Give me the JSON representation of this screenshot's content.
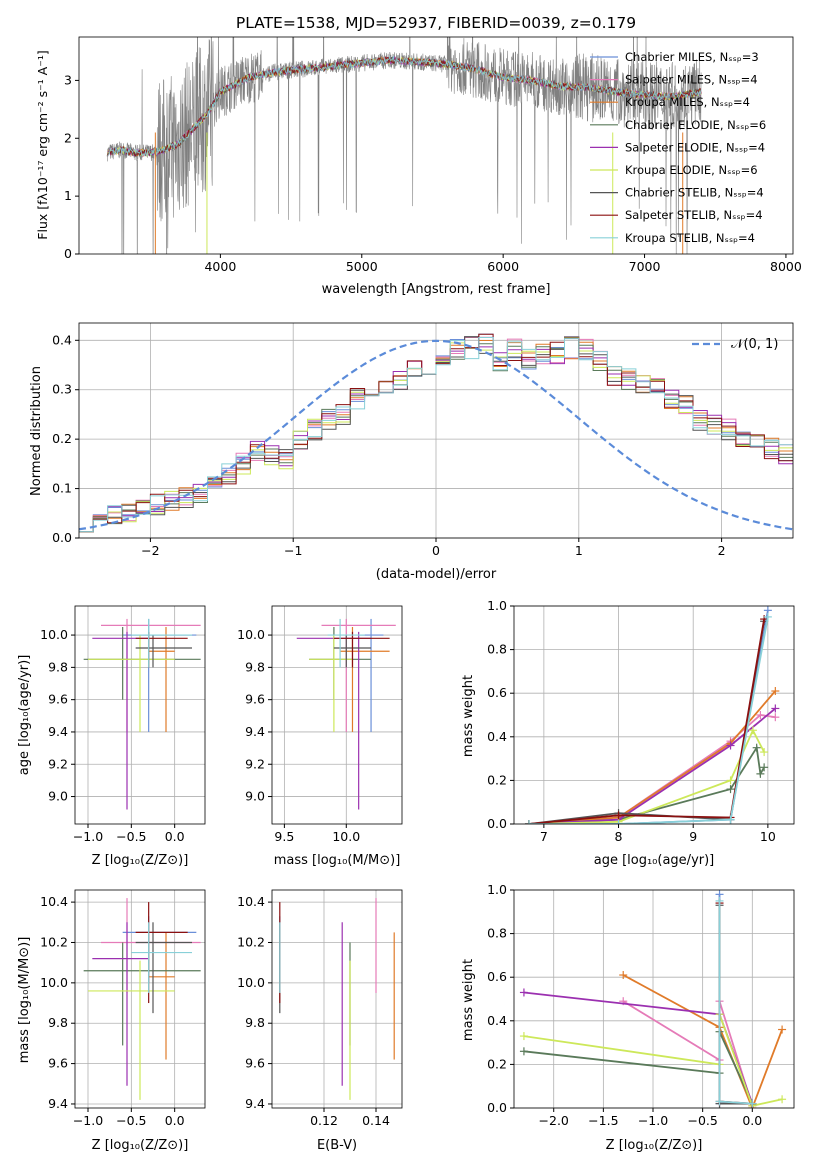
{
  "figure": {
    "title": "PLATE=1538, MJD=52937, FIBERID=0039, z=0.179"
  },
  "colors": {
    "chabrier_miles": "#6a8fd8",
    "salpeter_miles": "#e57bb8",
    "kroupa_miles": "#e07b2a",
    "chabrier_elodie": "#5a7a5a",
    "salpeter_elodie": "#9b30b0",
    "kroupa_elodie": "#cde85a",
    "chabrier_stelib": "#555555",
    "salpeter_stelib": "#8b1010",
    "kroupa_stelib": "#88d0d8",
    "data": "#808080"
  },
  "chart_data": [
    {
      "id": "spectrum",
      "type": "line",
      "xlabel": "wavelength [Angstrom, rest frame]",
      "ylabel": "Flux [fλ10⁻¹⁷ erg cm⁻² s⁻¹ A⁻¹]",
      "xlim": [
        3000,
        8050
      ],
      "ylim": [
        0,
        3.75
      ],
      "xticks": [
        "4000",
        "5000",
        "6000",
        "7000",
        "8000"
      ],
      "yticks": [
        "0",
        "1",
        "2",
        "3"
      ],
      "legend_position": "upper-right",
      "legend": [
        "Chabrier MILES, Nₛₛₚ=3",
        "Salpeter MILES, Nₛₛₚ=4",
        "Kroupa MILES, Nₛₛₚ=4",
        "Chabrier ELODIE, Nₛₛₚ=6",
        "Salpeter ELODIE, Nₛₛₚ=4",
        "Kroupa ELODIE, Nₛₛₚ=6",
        "Chabrier STELIB, Nₛₛₚ=4",
        "Salpeter STELIB, Nₛₛₚ=4",
        "Kroupa STELIB, Nₛₛₚ=4"
      ],
      "continuum": [
        [
          3200,
          1.75
        ],
        [
          3300,
          1.8
        ],
        [
          3400,
          1.75
        ],
        [
          3500,
          1.75
        ],
        [
          3600,
          1.8
        ],
        [
          3700,
          1.9
        ],
        [
          3800,
          2.15
        ],
        [
          3900,
          2.4
        ],
        [
          4000,
          2.8
        ],
        [
          4200,
          3.05
        ],
        [
          4400,
          3.15
        ],
        [
          4600,
          3.2
        ],
        [
          4800,
          3.25
        ],
        [
          5000,
          3.3
        ],
        [
          5200,
          3.35
        ],
        [
          5400,
          3.32
        ],
        [
          5600,
          3.28
        ],
        [
          5800,
          3.2
        ],
        [
          6000,
          3.05
        ],
        [
          6200,
          3.0
        ],
        [
          6400,
          2.9
        ],
        [
          6600,
          2.88
        ],
        [
          6800,
          2.8
        ],
        [
          7000,
          2.75
        ],
        [
          7200,
          2.72
        ],
        [
          7400,
          2.8
        ]
      ]
    },
    {
      "id": "residuals",
      "type": "line",
      "xlabel": "(data-model)/error",
      "ylabel": "Normed distribution",
      "xlim": [
        -2.5,
        2.5
      ],
      "ylim": [
        0,
        0.435
      ],
      "xticks": [
        "−2",
        "−1",
        "0",
        "1",
        "2"
      ],
      "yticks": [
        "0.0",
        "0.1",
        "0.2",
        "0.3",
        "0.4"
      ],
      "legend_position": "upper-right",
      "legend": [
        "𝒩(0, 1)"
      ],
      "bin_width": 0.1,
      "histogram_base": [
        0.035,
        0.035,
        0.048,
        0.055,
        0.06,
        0.068,
        0.075,
        0.08,
        0.09,
        0.11,
        0.13,
        0.15,
        0.175,
        0.17,
        0.16,
        0.2,
        0.22,
        0.24,
        0.25,
        0.28,
        0.28,
        0.3,
        0.32,
        0.34,
        0.35,
        0.37,
        0.38,
        0.385,
        0.39,
        0.36,
        0.38,
        0.36,
        0.37,
        0.375,
        0.385,
        0.38,
        0.36,
        0.33,
        0.32,
        0.31,
        0.3,
        0.28,
        0.27,
        0.24,
        0.23,
        0.22,
        0.2,
        0.19,
        0.18,
        0.17
      ]
    },
    {
      "id": "age_vs_z",
      "type": "scatter",
      "xlabel": "Z [log₁₀(Z/Z⊙)]",
      "ylabel": "age  [log₁₀(age/yr)]",
      "xlim": [
        -1.15,
        0.35
      ],
      "ylim": [
        8.83,
        10.18
      ],
      "xticks": [
        "−1.0",
        "−0.5",
        "0.0"
      ],
      "yticks": [
        "9.0",
        "9.2",
        "9.4",
        "9.6",
        "9.8",
        "10.0"
      ]
    },
    {
      "id": "age_vs_mass",
      "type": "scatter",
      "xlabel": "mass [log₁₀(M/M⊙)]",
      "xlim": [
        9.4,
        10.45
      ],
      "ylim": [
        8.83,
        10.18
      ],
      "xticks": [
        "9.5",
        "10.0"
      ],
      "yticks": [
        "9.0",
        "9.2",
        "9.4",
        "9.6",
        "9.8",
        "10.0"
      ]
    },
    {
      "id": "massweight_vs_age",
      "type": "line",
      "xlabel": "age  [log₁₀(age/yr)]",
      "ylabel": "mass weight",
      "xlim": [
        6.6,
        10.35
      ],
      "ylim": [
        0,
        1
      ],
      "xticks": [
        "7",
        "8",
        "9",
        "10"
      ],
      "yticks": [
        "0.0",
        "0.2",
        "0.4",
        "0.6",
        "0.8",
        "1.0"
      ],
      "series": [
        {
          "key": "chabrier_miles",
          "x": [
            6.8,
            8.0,
            9.5,
            10.0
          ],
          "y": [
            0.0,
            0.0,
            0.02,
            0.98
          ]
        },
        {
          "key": "salpeter_miles",
          "x": [
            6.8,
            8.0,
            9.5,
            9.9,
            10.1
          ],
          "y": [
            0.0,
            0.03,
            0.38,
            0.5,
            0.49
          ]
        },
        {
          "key": "kroupa_miles",
          "x": [
            6.8,
            8.0,
            9.5,
            10.1
          ],
          "y": [
            0.0,
            0.03,
            0.37,
            0.61
          ]
        },
        {
          "key": "chabrier_elodie",
          "x": [
            6.8,
            8.0,
            9.5,
            9.85,
            9.9,
            9.95
          ],
          "y": [
            0.0,
            0.02,
            0.16,
            0.35,
            0.23,
            0.26
          ]
        },
        {
          "key": "salpeter_elodie",
          "x": [
            6.8,
            8.0,
            9.5,
            10.1
          ],
          "y": [
            0.0,
            0.02,
            0.36,
            0.53
          ]
        },
        {
          "key": "kroupa_elodie",
          "x": [
            6.8,
            8.0,
            9.5,
            9.8,
            9.95
          ],
          "y": [
            0.0,
            0.01,
            0.2,
            0.43,
            0.33
          ]
        },
        {
          "key": "chabrier_stelib",
          "x": [
            6.8,
            8.0,
            9.5,
            9.95
          ],
          "y": [
            0.0,
            0.05,
            0.02,
            0.93
          ]
        },
        {
          "key": "salpeter_stelib",
          "x": [
            6.8,
            8.0,
            9.5,
            9.95
          ],
          "y": [
            0.0,
            0.04,
            0.03,
            0.94
          ]
        },
        {
          "key": "kroupa_stelib",
          "x": [
            6.8,
            8.0,
            9.5,
            10.0
          ],
          "y": [
            0.0,
            0.0,
            0.02,
            0.95
          ]
        }
      ]
    },
    {
      "id": "mass_vs_z",
      "type": "scatter",
      "xlabel": "Z [log₁₀(Z/Z⊙)]",
      "ylabel": "mass [log₁₀(M/M⊙)]",
      "xlim": [
        -1.15,
        0.35
      ],
      "ylim": [
        9.38,
        10.46
      ],
      "xticks": [
        "−1.0",
        "−0.5",
        "0.0"
      ],
      "yticks": [
        "9.4",
        "9.6",
        "9.8",
        "10.0",
        "10.2",
        "10.4"
      ]
    },
    {
      "id": "mass_vs_ebv",
      "type": "scatter",
      "xlabel": "E(B-V)",
      "xlim": [
        0.1,
        0.15
      ],
      "ylim": [
        9.38,
        10.46
      ],
      "xticks": [
        "0.12",
        "0.14"
      ],
      "yticks": [
        "9.4",
        "9.6",
        "9.8",
        "10.0",
        "10.2",
        "10.4"
      ]
    },
    {
      "id": "massweight_vs_z",
      "type": "line",
      "xlabel": "Z [log₁₀(Z/Z⊙)]",
      "ylabel": "mass weight",
      "xlim": [
        -2.4,
        0.42
      ],
      "ylim": [
        0,
        1
      ],
      "xticks": [
        "−2.0",
        "−1.5",
        "−1.0",
        "−0.5",
        "0.0"
      ],
      "yticks": [
        "0.0",
        "0.2",
        "0.4",
        "0.6",
        "0.8",
        "1.0"
      ],
      "series": [
        {
          "key": "chabrier_miles",
          "x": [
            -0.33,
            -0.33,
            0.0
          ],
          "y": [
            0.98,
            0.02,
            0.02
          ]
        },
        {
          "key": "salpeter_miles",
          "x": [
            -1.3,
            -0.33,
            -0.33,
            0.0
          ],
          "y": [
            0.49,
            0.22,
            0.49,
            0.01
          ]
        },
        {
          "key": "kroupa_miles",
          "x": [
            -1.3,
            -0.33,
            0.0,
            0.3
          ],
          "y": [
            0.61,
            0.37,
            0.0,
            0.36
          ]
        },
        {
          "key": "chabrier_elodie",
          "x": [
            -2.3,
            -0.33,
            -0.33,
            0.0
          ],
          "y": [
            0.26,
            0.16,
            0.35,
            0.02
          ]
        },
        {
          "key": "salpeter_elodie",
          "x": [
            -2.3,
            -0.33,
            0.0
          ],
          "y": [
            0.53,
            0.43,
            0.02
          ]
        },
        {
          "key": "kroupa_elodie",
          "x": [
            -2.3,
            -0.33,
            -0.33,
            0.0,
            0.3
          ],
          "y": [
            0.33,
            0.2,
            0.43,
            0.01,
            0.04
          ]
        },
        {
          "key": "chabrier_stelib",
          "x": [
            -0.33,
            -0.33,
            0.0
          ],
          "y": [
            0.93,
            0.02,
            0.02
          ]
        },
        {
          "key": "salpeter_stelib",
          "x": [
            -0.33,
            -0.33,
            0.0
          ],
          "y": [
            0.94,
            0.03,
            0.02
          ]
        },
        {
          "key": "kroupa_stelib",
          "x": [
            -0.33,
            -0.33,
            0.0
          ],
          "y": [
            0.95,
            0.03,
            0.02
          ]
        }
      ]
    }
  ],
  "errorbars": {
    "order": [
      "chabrier_miles",
      "salpeter_miles",
      "kroupa_miles",
      "chabrier_elodie",
      "salpeter_elodie",
      "kroupa_elodie",
      "chabrier_stelib",
      "salpeter_stelib",
      "kroupa_stelib"
    ],
    "z": [
      [
        -0.3,
        -0.6,
        0.25
      ],
      [
        -0.55,
        -0.85,
        0.3
      ],
      [
        -0.1,
        -0.3,
        0.0
      ],
      [
        -0.6,
        -1.05,
        0.3
      ],
      [
        -0.55,
        -0.95,
        -0.3
      ],
      [
        -0.4,
        -1.0,
        0.0
      ],
      [
        -0.25,
        -0.45,
        0.2
      ],
      [
        -0.3,
        -0.45,
        0.15
      ],
      [
        -0.3,
        -0.5,
        0.2
      ]
    ],
    "age": [
      [
        10.0,
        9.4,
        10.1
      ],
      [
        10.06,
        9.4,
        10.1
      ],
      [
        9.9,
        9.4,
        10.05
      ],
      [
        9.85,
        9.6,
        10.05
      ],
      [
        9.98,
        8.92,
        10.02
      ],
      [
        9.85,
        9.4,
        10.0
      ],
      [
        9.92,
        9.8,
        10.0
      ],
      [
        9.98,
        9.8,
        10.02
      ],
      [
        10.0,
        9.8,
        10.1
      ]
    ],
    "mass": [
      [
        10.25,
        10.0,
        10.33
      ],
      [
        10.2,
        9.95,
        10.42
      ],
      [
        10.03,
        9.62,
        10.25
      ],
      [
        10.06,
        9.69,
        10.2
      ],
      [
        10.12,
        9.49,
        10.3
      ],
      [
        9.96,
        9.42,
        10.11
      ],
      [
        10.2,
        9.85,
        10.3
      ],
      [
        10.25,
        9.9,
        10.4
      ],
      [
        10.15,
        9.95,
        10.3
      ]
    ],
    "mass_err": [
      [
        10.2,
        10.1,
        10.3
      ],
      [
        10.0,
        9.8,
        10.4
      ],
      [
        10.05,
        9.95,
        10.35
      ],
      [
        9.9,
        9.7,
        10.2
      ],
      [
        10.1,
        9.6,
        10.2
      ],
      [
        9.9,
        9.7,
        10.05
      ],
      [
        10.0,
        9.9,
        10.2
      ],
      [
        10.05,
        9.9,
        10.35
      ],
      [
        9.95,
        9.85,
        10.15
      ]
    ],
    "ebv": [
      0.103,
      0.14,
      0.147,
      0.13,
      0.127,
      0.13,
      0.103,
      0.103,
      0.103
    ]
  }
}
